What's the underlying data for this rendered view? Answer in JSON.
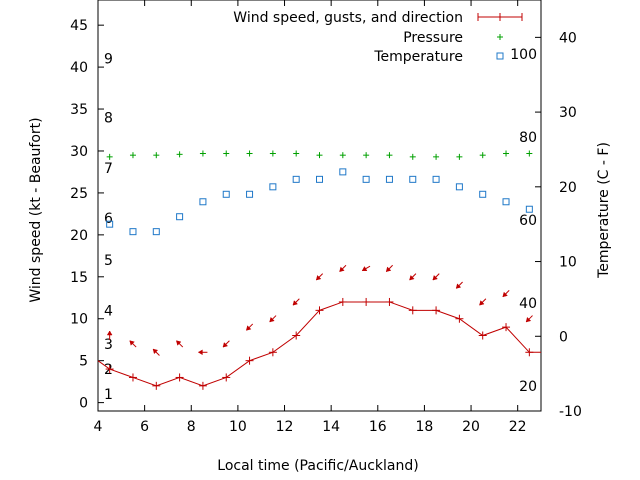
{
  "chart_data": {
    "type": "line",
    "xlabel": "Local time (Pacific/Auckland)",
    "ylabel": "Wind speed (kt - Beaufort)",
    "y2label": "Temperature (C - F)",
    "xlim": [
      4,
      23
    ],
    "ylim": [
      -1,
      48
    ],
    "y2lim": [
      -10,
      45
    ],
    "xticks": [
      "4",
      "6",
      "8",
      "10",
      "12",
      "14",
      "16",
      "18",
      "20",
      "22"
    ],
    "yticks": [
      "0",
      "5",
      "10",
      "15",
      "20",
      "25",
      "30",
      "35",
      "40",
      "45"
    ],
    "y2ticks": [
      "-10",
      "0",
      "10",
      "20",
      "30",
      "40"
    ],
    "beaufort_labels": [
      "1",
      "2",
      "3",
      "4",
      "5",
      "6",
      "7",
      "8",
      "9"
    ],
    "beaufort_values": [
      1,
      2,
      3,
      4,
      5,
      6,
      7,
      8,
      9
    ],
    "beaufort_kt": [
      1,
      4,
      7,
      11,
      17,
      22,
      28,
      34,
      41
    ],
    "fahrenheit_labels": [
      "20",
      "40",
      "60",
      "80",
      "100"
    ],
    "fahrenheit_values": [
      20,
      40,
      60,
      80,
      100
    ],
    "legend": [
      "Wind speed, gusts, and direction",
      "Pressure",
      "Temperature"
    ],
    "colors": {
      "wind": "#c00000",
      "pressure": "#00a000",
      "temperature": "#1f78c8"
    },
    "series": [
      {
        "name": "Wind speed, gusts, and direction",
        "x": [
          4,
          4.5,
          5.5,
          6.5,
          7.5,
          8.5,
          9.5,
          10.5,
          11.5,
          12.5,
          13.5,
          14.5,
          15.5,
          16.5,
          17.5,
          18.5,
          19.5,
          20.5,
          21.5,
          22.5,
          23
        ],
        "values": [
          5,
          4,
          3,
          2,
          3,
          2,
          3,
          5,
          6,
          8,
          11,
          12,
          12,
          12,
          11,
          11,
          10,
          8,
          9,
          6,
          6
        ]
      },
      {
        "name": "Pressure",
        "x": [
          4.5,
          5.5,
          6.5,
          7.5,
          8.5,
          9.5,
          10.5,
          11.5,
          12.5,
          13.5,
          14.5,
          15.5,
          16.5,
          17.5,
          18.5,
          19.5,
          20.5,
          21.5,
          22.5
        ],
        "values": [
          29.3,
          29.5,
          29.5,
          29.6,
          29.7,
          29.7,
          29.7,
          29.7,
          29.7,
          29.5,
          29.5,
          29.5,
          29.5,
          29.3,
          29.3,
          29.3,
          29.5,
          29.7,
          29.7
        ]
      },
      {
        "name": "Temperature",
        "x": [
          4.5,
          5.5,
          6.5,
          7.5,
          8.5,
          9.5,
          10.5,
          11.5,
          12.5,
          13.5,
          14.5,
          15.5,
          16.5,
          17.5,
          18.5,
          19.5,
          20.5,
          21.5,
          22.5
        ],
        "values": [
          15,
          14,
          14,
          16,
          18,
          19,
          19,
          20,
          21,
          21,
          22,
          21,
          21,
          21,
          21,
          20,
          19,
          18,
          17
        ]
      }
    ],
    "gusts": {
      "x": [
        4.5,
        5.5,
        6.5,
        7.5,
        8.5,
        9.5,
        10.5,
        11.5,
        12.5,
        13.5,
        14.5,
        15.5,
        16.5,
        17.5,
        18.5,
        19.5,
        20.5,
        21.5,
        22.5
      ],
      "values": [
        8,
        7,
        6,
        7,
        6,
        7,
        9,
        10,
        12,
        15,
        16,
        16,
        16,
        15,
        15,
        14,
        12,
        13,
        10
      ],
      "direction_deg": [
        0,
        315,
        315,
        315,
        270,
        225,
        225,
        225,
        225,
        225,
        225,
        240,
        225,
        225,
        225,
        225,
        225,
        225,
        225
      ]
    }
  }
}
